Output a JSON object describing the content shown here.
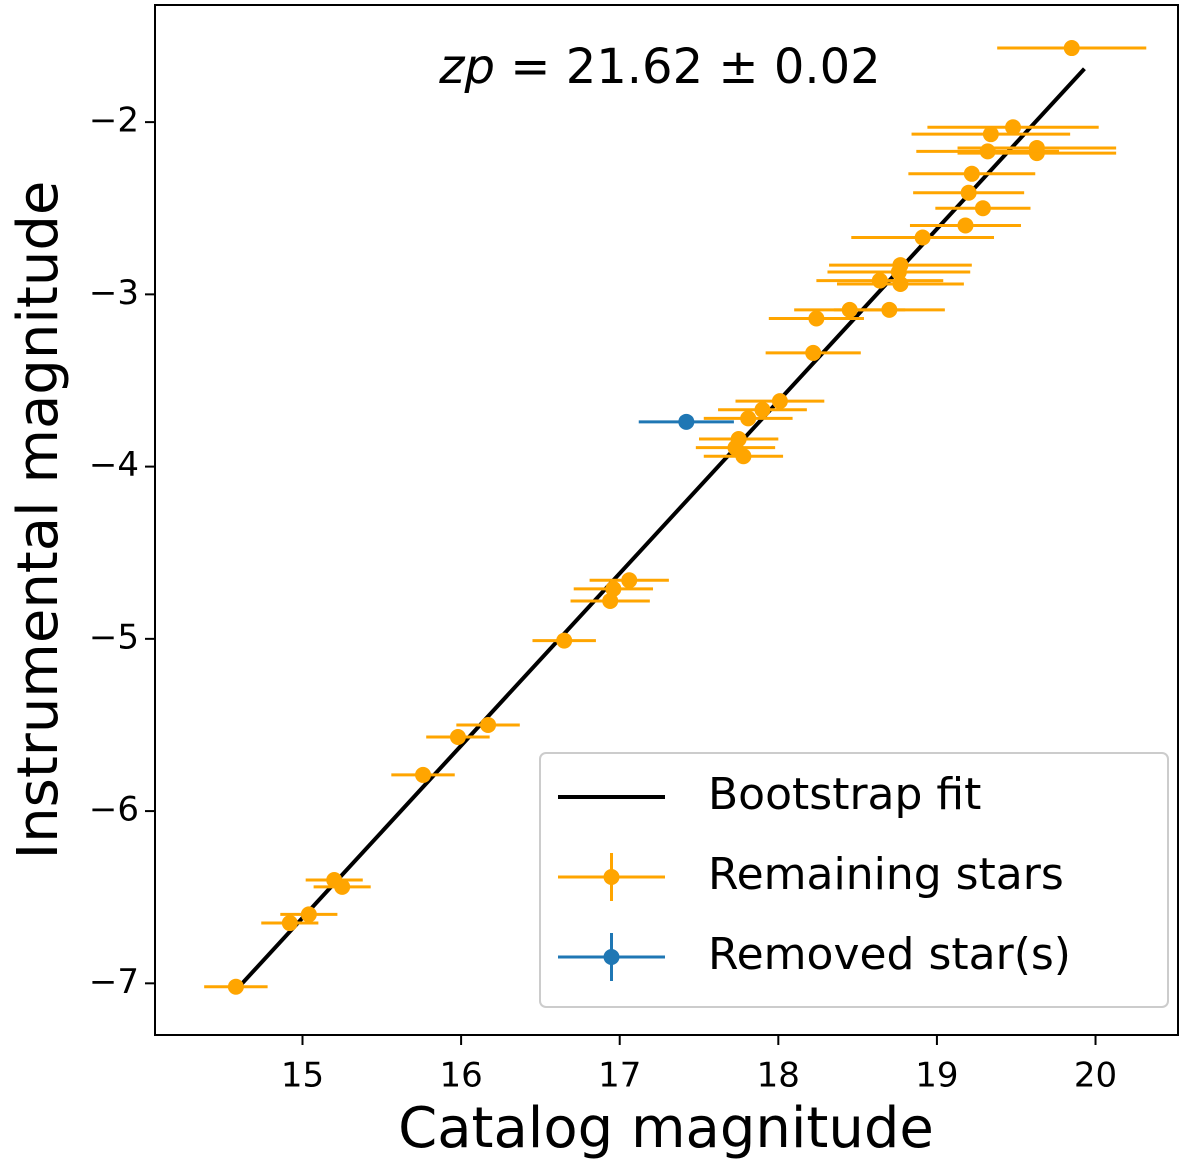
{
  "chart_data": {
    "type": "scatter",
    "xlabel": "Catalog magnitude",
    "ylabel": "Instrumental magnitude",
    "annotation": {
      "symbol": "zp",
      "text": "= 21.62 ± 0.02"
    },
    "xlim": [
      14.07,
      20.52
    ],
    "ylim": [
      -7.3,
      -1.32
    ],
    "xticks": [
      15,
      16,
      17,
      18,
      19,
      20
    ],
    "yticks": [
      {
        "value": -2,
        "label": "−2"
      },
      {
        "value": -3,
        "label": "−3"
      },
      {
        "value": -4,
        "label": "−4"
      },
      {
        "value": -5,
        "label": "−5"
      },
      {
        "value": -6,
        "label": "−6"
      },
      {
        "value": -7,
        "label": "−7"
      }
    ],
    "legend": "lower right",
    "series": [
      {
        "name": "Bootstrap fit",
        "color": "#000000",
        "x": [
          14.57,
          19.93
        ],
        "values": [
          -7.05,
          -1.69
        ]
      },
      {
        "name": "Remaining stars",
        "color": "#ffa500",
        "x": [
          19.85,
          19.48,
          19.34,
          19.63,
          19.63,
          19.32,
          19.22,
          19.2,
          19.29,
          19.18,
          18.91,
          18.77,
          18.76,
          18.77,
          18.64,
          18.7,
          18.45,
          18.24,
          18.22,
          18.01,
          17.9,
          17.81,
          17.75,
          17.73,
          17.78,
          17.06,
          16.96,
          16.94,
          16.65,
          16.17,
          15.98,
          15.76,
          15.2,
          15.25,
          15.04,
          14.92,
          14.58
        ],
        "values": [
          -1.57,
          -2.03,
          -2.07,
          -2.15,
          -2.18,
          -2.17,
          -2.3,
          -2.41,
          -2.5,
          -2.6,
          -2.67,
          -2.83,
          -2.87,
          -2.94,
          -2.92,
          -3.09,
          -3.09,
          -3.14,
          -3.34,
          -3.62,
          -3.67,
          -3.72,
          -3.84,
          -3.89,
          -3.94,
          -4.66,
          -4.71,
          -4.78,
          -5.01,
          -5.5,
          -5.57,
          -5.79,
          -6.4,
          -6.44,
          -6.6,
          -6.65,
          -7.02
        ],
        "xerr": [
          0.47,
          0.54,
          0.5,
          0.5,
          0.5,
          0.45,
          0.4,
          0.35,
          0.3,
          0.35,
          0.45,
          0.45,
          0.45,
          0.4,
          0.4,
          0.35,
          0.35,
          0.3,
          0.3,
          0.28,
          0.28,
          0.28,
          0.25,
          0.25,
          0.25,
          0.25,
          0.25,
          0.25,
          0.2,
          0.2,
          0.2,
          0.2,
          0.18,
          0.18,
          0.18,
          0.18,
          0.2
        ]
      },
      {
        "name": "Removed star(s)",
        "color": "#1f77b4",
        "x": [
          17.42
        ],
        "values": [
          -3.74
        ],
        "xerr": [
          0.3
        ]
      }
    ]
  }
}
